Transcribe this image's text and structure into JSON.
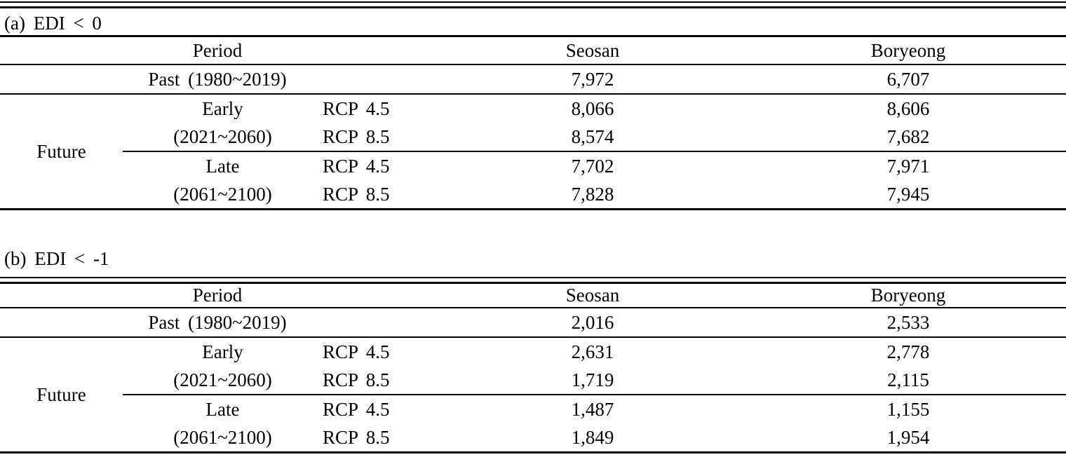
{
  "page": {
    "background": "#ffffff",
    "text_color": "#000000",
    "rule_color": "#000000"
  },
  "tables": [
    {
      "title": "(a) EDI < 0",
      "header": {
        "period": "Period",
        "seosan": "Seosan",
        "boryeong": "Boryeong"
      },
      "past": {
        "label": "Past (1980~2019)",
        "seosan": "7,972",
        "boryeong": "6,707"
      },
      "future": {
        "label": "Future",
        "groups": [
          {
            "name": "Early",
            "range": "(2021~2060)",
            "rows": [
              {
                "scenario": "RCP 4.5",
                "seosan": "8,066",
                "boryeong": "8,606"
              },
              {
                "scenario": "RCP 8.5",
                "seosan": "8,574",
                "boryeong": "7,682"
              }
            ]
          },
          {
            "name": "Late",
            "range": "(2061~2100)",
            "rows": [
              {
                "scenario": "RCP 4.5",
                "seosan": "7,702",
                "boryeong": "7,971"
              },
              {
                "scenario": "RCP 8.5",
                "seosan": "7,828",
                "boryeong": "7,945"
              }
            ]
          }
        ]
      }
    },
    {
      "title": "(b) EDI < -1",
      "header": {
        "period": "Period",
        "seosan": "Seosan",
        "boryeong": "Boryeong"
      },
      "past": {
        "label": "Past (1980~2019)",
        "seosan": "2,016",
        "boryeong": "2,533"
      },
      "future": {
        "label": "Future",
        "groups": [
          {
            "name": "Early",
            "range": "(2021~2060)",
            "rows": [
              {
                "scenario": "RCP 4.5",
                "seosan": "2,631",
                "boryeong": "2,778"
              },
              {
                "scenario": "RCP 8.5",
                "seosan": "1,719",
                "boryeong": "2,115"
              }
            ]
          },
          {
            "name": "Late",
            "range": "(2061~2100)",
            "rows": [
              {
                "scenario": "RCP 4.5",
                "seosan": "1,487",
                "boryeong": "1,155"
              },
              {
                "scenario": "RCP 8.5",
                "seosan": "1,849",
                "boryeong": "1,954"
              }
            ]
          }
        ]
      }
    }
  ]
}
